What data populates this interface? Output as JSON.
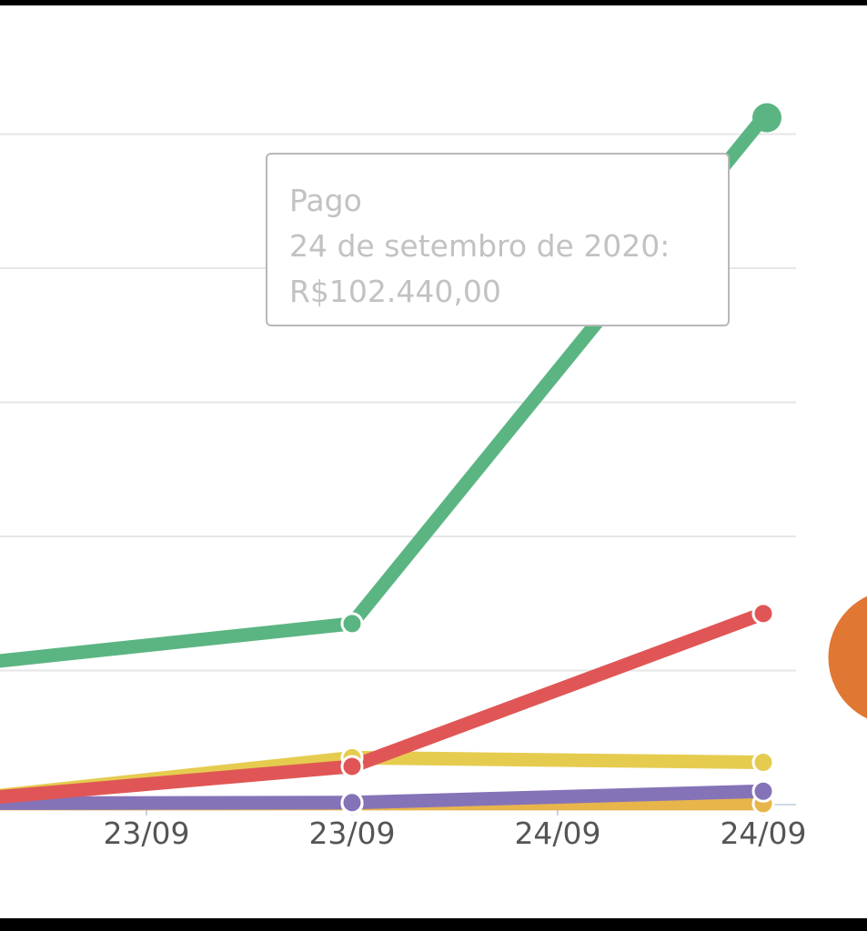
{
  "colors": {
    "pago": "#5bb582",
    "red_series": "#e05656",
    "yellow_series": "#e5cc4f",
    "purple_series": "#8573b8",
    "orange_series": "#e8b54b",
    "pie_slice": "#e07733",
    "grid": "#e6e6e6",
    "axis_text": "#555555",
    "tooltip_text": "#c2c2c2"
  },
  "chart_data": {
    "type": "line",
    "categories": [
      "",
      "23/09",
      "23/09",
      "24/09",
      "24/09"
    ],
    "ylim": [
      0,
      120000
    ],
    "grid": true,
    "series": [
      {
        "name": "Pago",
        "color_key": "pago",
        "values": [
          20500,
          null,
          27000,
          null,
          102440
        ]
      },
      {
        "name": "",
        "color_key": "red_series",
        "values": [
          400,
          null,
          5700,
          null,
          28500
        ]
      },
      {
        "name": "",
        "color_key": "yellow_series",
        "values": [
          400,
          null,
          7000,
          null,
          6300
        ]
      },
      {
        "name": "",
        "color_key": "purple_series",
        "values": [
          200,
          null,
          300,
          null,
          2000
        ]
      },
      {
        "name": "",
        "color_key": "orange_series",
        "values": [
          150,
          null,
          150,
          null,
          150
        ]
      }
    ]
  },
  "tooltip": {
    "series_name": "Pago",
    "date_label": "24 de setembro de 2020:",
    "value_label": "R$102.440,00"
  }
}
